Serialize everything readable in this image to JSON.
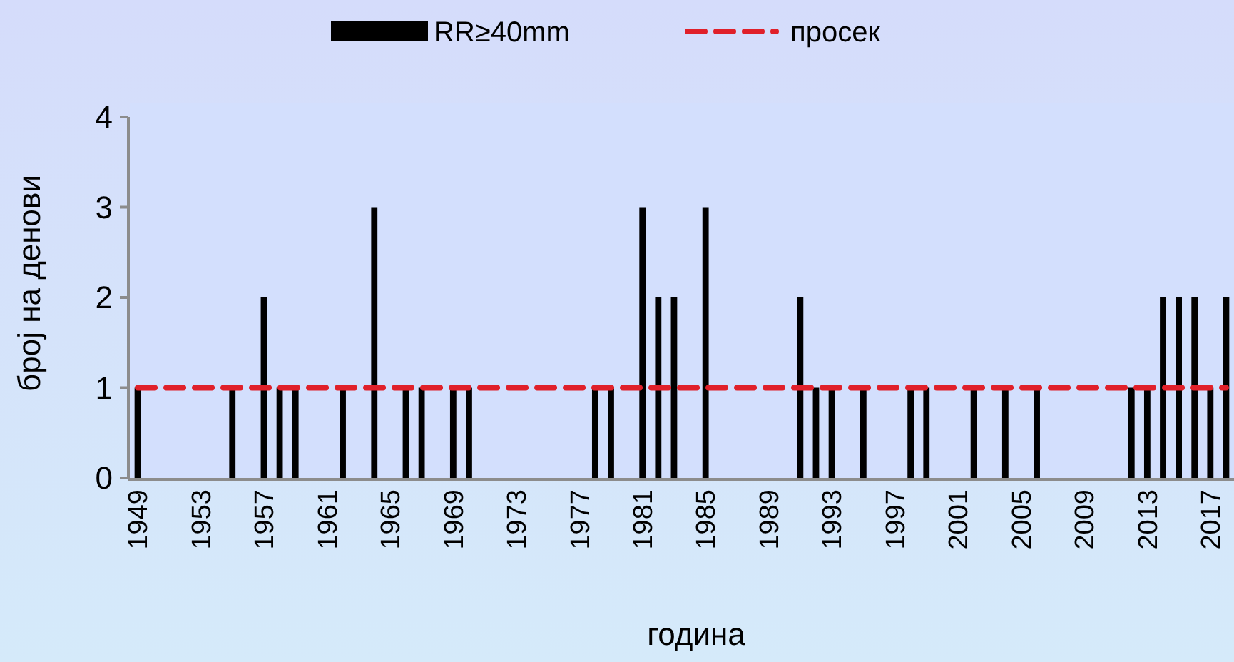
{
  "chart_data": {
    "type": "bar",
    "xlabel": "година",
    "ylabel": "број на денови",
    "categories": [
      "1949",
      null,
      null,
      null,
      "1953",
      null,
      null,
      null,
      "1957",
      null,
      null,
      null,
      "1961",
      null,
      null,
      null,
      "1965",
      null,
      null,
      null,
      "1969",
      null,
      null,
      null,
      "1973",
      null,
      null,
      null,
      "1977",
      null,
      null,
      null,
      "1981",
      null,
      null,
      null,
      "1985",
      null,
      null,
      null,
      "1989",
      null,
      null,
      null,
      "1993",
      null,
      null,
      null,
      "1997",
      null,
      null,
      null,
      "2001",
      null,
      null,
      null,
      "2005",
      null,
      null,
      null,
      "2009",
      null,
      null,
      null,
      "2013",
      null,
      null,
      null,
      "2017",
      null
    ],
    "series": [
      {
        "name": "RR≥40mm",
        "color": "#000000",
        "values": [
          1,
          0,
          0,
          0,
          0,
          0,
          1,
          0,
          2,
          1,
          1,
          0,
          0,
          1,
          0,
          3,
          0,
          1,
          1,
          0,
          1,
          1,
          0,
          0,
          0,
          0,
          0,
          0,
          0,
          1,
          1,
          0,
          3,
          2,
          2,
          0,
          3,
          0,
          0,
          0,
          0,
          0,
          2,
          1,
          1,
          0,
          1,
          0,
          0,
          1,
          1,
          0,
          0,
          1,
          0,
          1,
          0,
          1,
          0,
          0,
          0,
          0,
          0,
          1,
          1,
          2,
          2,
          2,
          1,
          2
        ]
      },
      {
        "name": "просек",
        "type": "line",
        "color": "#e0202a",
        "line_style": "dashed",
        "marker": "none",
        "values": [
          1,
          1,
          1,
          1,
          1,
          1,
          1,
          1,
          1,
          1,
          1,
          1,
          1,
          1,
          1,
          1,
          1,
          1,
          1,
          1,
          1,
          1,
          1,
          1,
          1,
          1,
          1,
          1,
          1,
          1,
          1,
          1,
          1,
          1,
          1,
          1,
          1,
          1,
          1,
          1,
          1,
          1,
          1,
          1,
          1,
          1,
          1,
          1,
          1,
          1,
          1,
          1,
          1,
          1,
          1,
          1,
          1,
          1,
          1,
          1,
          1,
          1,
          1,
          1,
          1,
          1,
          1,
          1,
          1,
          1
        ]
      }
    ],
    "ylim": [
      0,
      4
    ],
    "yticks": [
      0,
      1,
      2,
      3,
      4
    ],
    "grid": false,
    "legend": "top"
  }
}
